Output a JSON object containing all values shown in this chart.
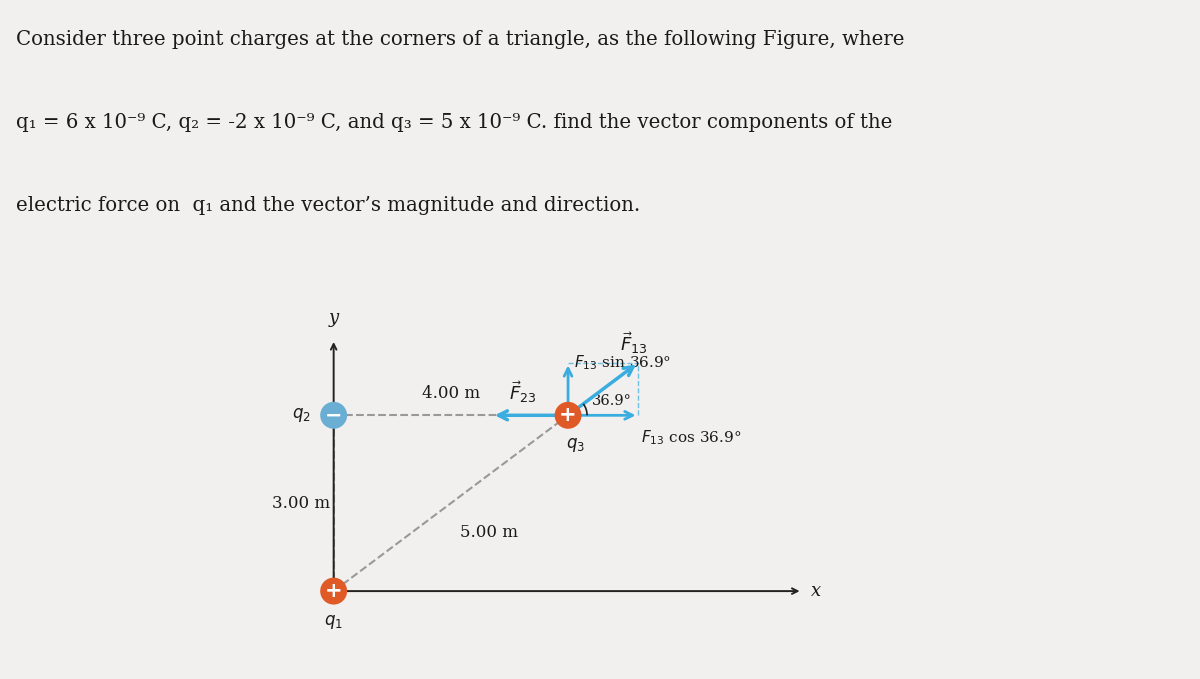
{
  "title_lines": [
    "Consider three point charges at the corners of a triangle, as the following Figure, where",
    "q₁ = 6 x 10⁻⁹ C, q₂ = -2 x 10⁻⁹ C, and q₃ = 5 x 10⁻⁹ C. find the vector components of the",
    "electric force on  q₁ and the vector’s magnitude and direction."
  ],
  "bg_color": "#f2f0ee",
  "text_color": "#1a1a1a",
  "arrow_color": "#3aade0",
  "dashed_color": "#999999",
  "q1_color": "#e05a28",
  "q2_color": "#6aaed4",
  "q3_color": "#e05a28",
  "axis_color": "#222222",
  "dist_q2q3": "4.00 m",
  "dist_q1q2": "3.00 m",
  "dist_q1q3": "5.00 m",
  "angle_str": "36.9",
  "f13_label": "$\\vec{F}_{13}$",
  "f23_label": "$\\vec{F}_{23}$",
  "f13_sin_label": "$F_{13}$ sin 36.9°",
  "f13_cos_label": "$F_{13}$ cos 36.9°"
}
